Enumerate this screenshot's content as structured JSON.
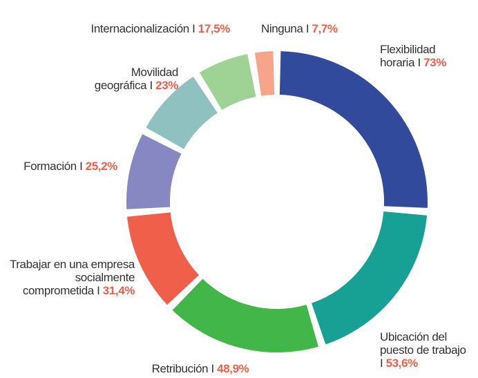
{
  "chart_data": {
    "type": "donut",
    "categories": [
      "Flexibilidad horaria I",
      "Ubicación del puesto de trabajo I",
      "Retribución I",
      "Trabajar en una empresa socialmente comprometida I",
      "Formación I",
      "Movilidad geográfica I",
      "Internacionalización I",
      "Ninguna I"
    ],
    "values": [
      73,
      53.6,
      48.9,
      31.4,
      25.2,
      23,
      17.5,
      7.7
    ],
    "value_labels": [
      "73%",
      "53,6%",
      "48,9%",
      "31,4%",
      "25,2%",
      "23%",
      "17,5%",
      "7,7%"
    ],
    "colors": [
      "#324a9c",
      "#17a195",
      "#43b649",
      "#f05f4a",
      "#8788c2",
      "#8ec1bf",
      "#9fd295",
      "#f6a48a"
    ],
    "value_label_color": "#f05f4a"
  }
}
